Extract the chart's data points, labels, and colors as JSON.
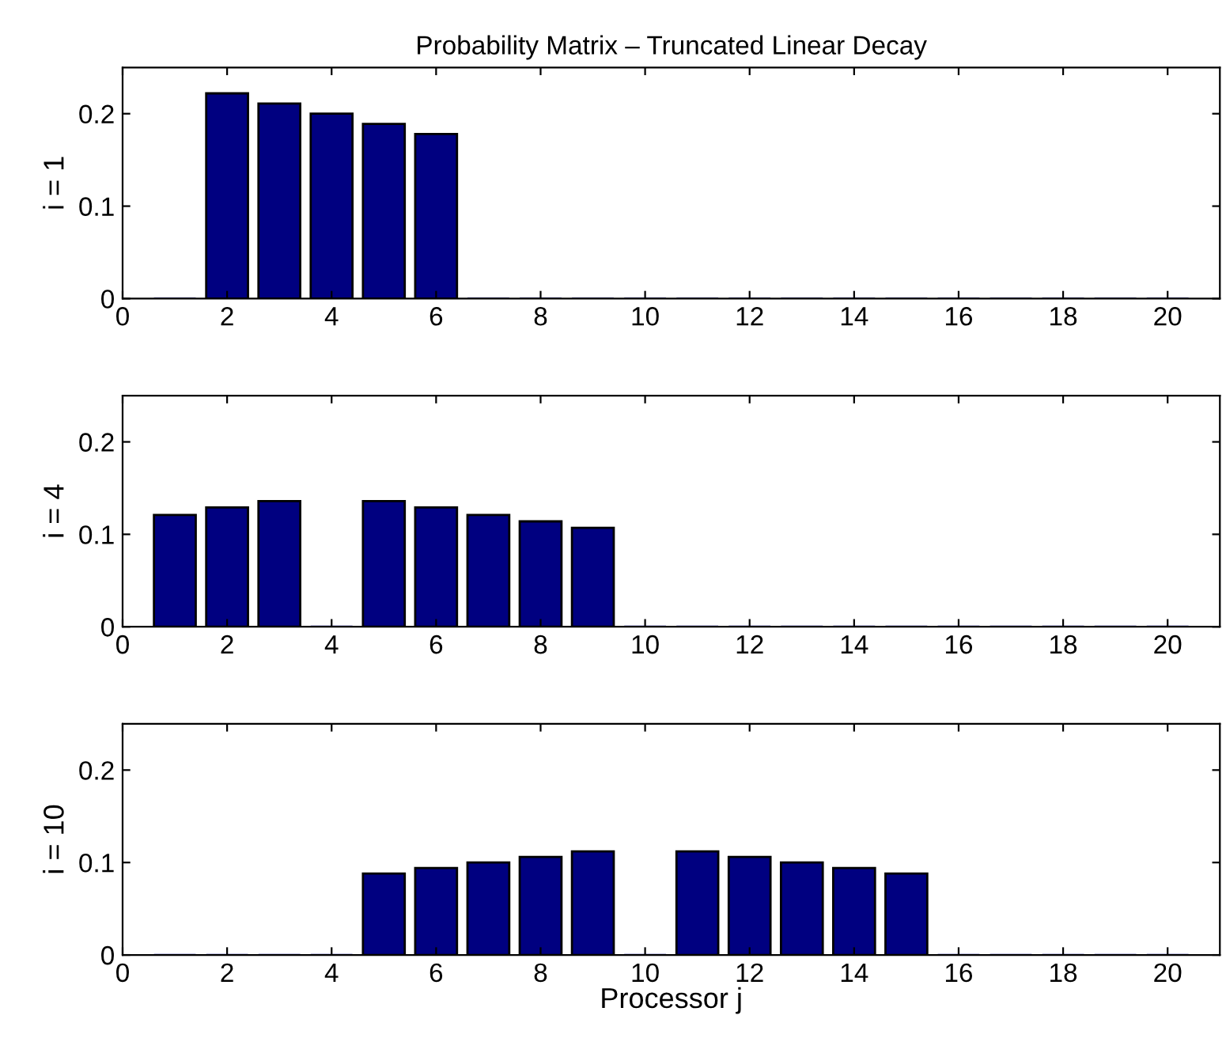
{
  "chart_data": [
    {
      "type": "bar",
      "title": "Probability Matrix – Truncated Linear Decay",
      "ylabel": "i = 1",
      "x": [
        1,
        2,
        3,
        4,
        5,
        6,
        7,
        8,
        9,
        10,
        11,
        12,
        13,
        14,
        15,
        16,
        17,
        18,
        19,
        20
      ],
      "values": [
        0,
        0.222,
        0.211,
        0.2,
        0.189,
        0.178,
        0,
        0,
        0,
        0,
        0,
        0,
        0,
        0,
        0,
        0,
        0,
        0,
        0,
        0
      ],
      "color": "#000080",
      "xlim": [
        0,
        21
      ],
      "xticks": [
        0,
        2,
        4,
        6,
        8,
        10,
        12,
        14,
        16,
        18,
        20
      ],
      "ylim": [
        0,
        0.25
      ],
      "yticks": [
        0,
        0.1,
        0.2
      ]
    },
    {
      "type": "bar",
      "ylabel": "i = 4",
      "x": [
        1,
        2,
        3,
        4,
        5,
        6,
        7,
        8,
        9,
        10,
        11,
        12,
        13,
        14,
        15,
        16,
        17,
        18,
        19,
        20
      ],
      "values": [
        0.121,
        0.129,
        0.136,
        0,
        0.136,
        0.129,
        0.121,
        0.114,
        0.107,
        0,
        0,
        0,
        0,
        0,
        0,
        0,
        0,
        0,
        0,
        0
      ],
      "color": "#000080",
      "xlim": [
        0,
        21
      ],
      "xticks": [
        0,
        2,
        4,
        6,
        8,
        10,
        12,
        14,
        16,
        18,
        20
      ],
      "ylim": [
        0,
        0.25
      ],
      "yticks": [
        0,
        0.1,
        0.2
      ]
    },
    {
      "type": "bar",
      "ylabel": "i = 10",
      "xlabel": "Processor j",
      "x": [
        1,
        2,
        3,
        4,
        5,
        6,
        7,
        8,
        9,
        10,
        11,
        12,
        13,
        14,
        15,
        16,
        17,
        18,
        19,
        20
      ],
      "values": [
        0,
        0,
        0,
        0,
        0.088,
        0.094,
        0.1,
        0.106,
        0.112,
        0,
        0.112,
        0.106,
        0.1,
        0.094,
        0.088,
        0,
        0,
        0,
        0,
        0
      ],
      "color": "#000080",
      "xlim": [
        0,
        21
      ],
      "xticks": [
        0,
        2,
        4,
        6,
        8,
        10,
        12,
        14,
        16,
        18,
        20
      ],
      "ylim": [
        0,
        0.25
      ],
      "yticks": [
        0,
        0.1,
        0.2
      ]
    }
  ]
}
